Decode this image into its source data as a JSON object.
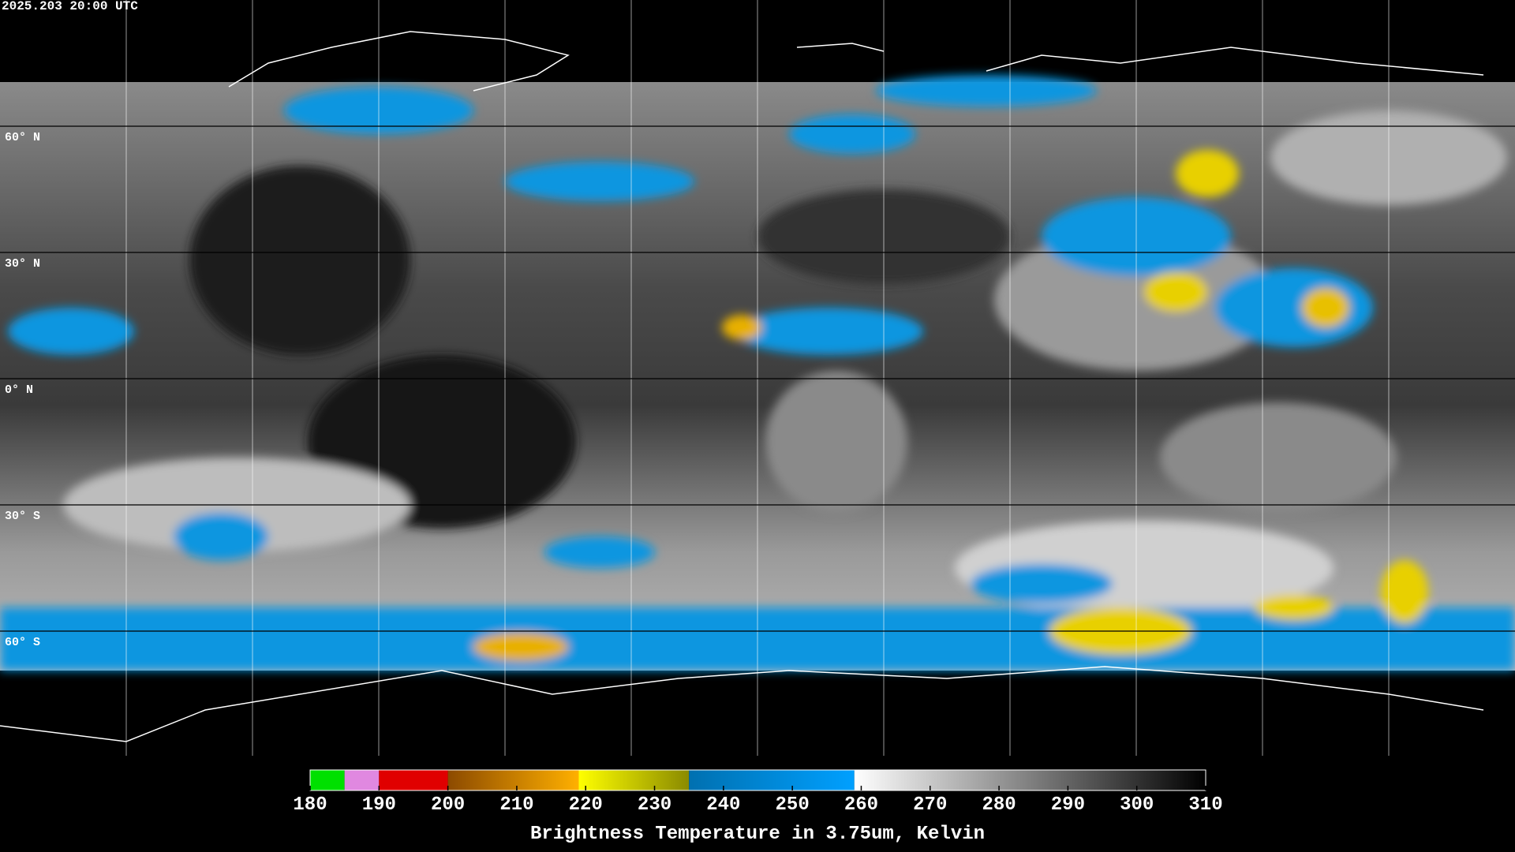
{
  "header": {
    "timestamp": "2025.203 20:00 UTC"
  },
  "map": {
    "lat_ticks": [
      {
        "value": 60,
        "label": "60° N"
      },
      {
        "value": 30,
        "label": "30° N"
      },
      {
        "value": 0,
        "label": "0° N"
      },
      {
        "value": -30,
        "label": "30° S"
      },
      {
        "value": -60,
        "label": "60° S"
      }
    ]
  },
  "chart_data": {
    "type": "colorbar",
    "title": "Brightness Temperature in 3.75um, Kelvin",
    "xlim": [
      180,
      310
    ],
    "xticks": [
      180,
      190,
      200,
      210,
      220,
      230,
      240,
      250,
      260,
      270,
      280,
      290,
      300,
      310
    ],
    "segments": [
      {
        "from": 180,
        "to": 185,
        "color_start": "#00e000",
        "color_end": "#00e000"
      },
      {
        "from": 185,
        "to": 190,
        "color_start": "#e088e0",
        "color_end": "#e088e0"
      },
      {
        "from": 190,
        "to": 200,
        "color_start": "#e00000",
        "color_end": "#e00000"
      },
      {
        "from": 200,
        "to": 219,
        "color_start": "#8c4a00",
        "color_end": "#ffb000"
      },
      {
        "from": 219,
        "to": 235,
        "color_start": "#ffff00",
        "color_end": "#8a8a00"
      },
      {
        "from": 235,
        "to": 259,
        "color_start": "#0070b0",
        "color_end": "#00a0ff"
      },
      {
        "from": 259,
        "to": 310,
        "color_start": "#ffffff",
        "color_end": "#000000"
      }
    ]
  }
}
